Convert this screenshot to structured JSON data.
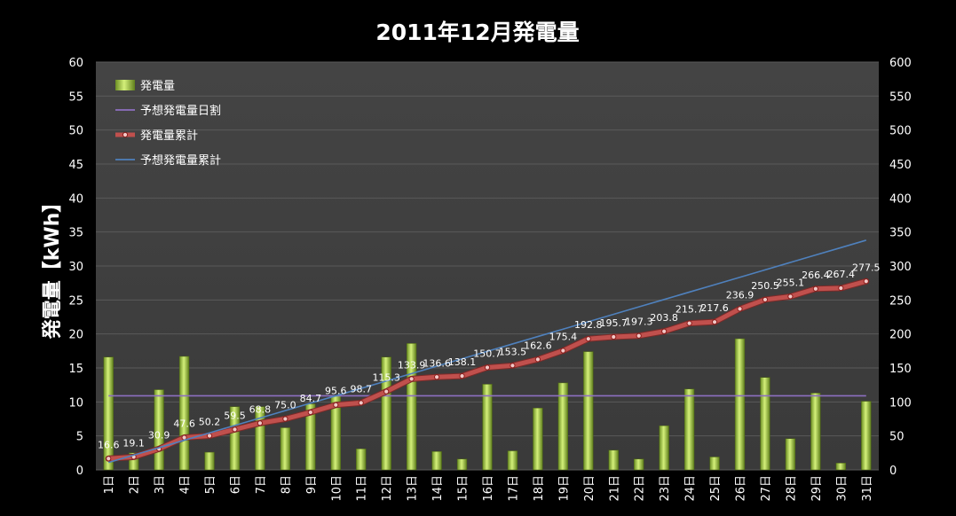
{
  "chart_data": {
    "type": "bar",
    "title": "2011年12月発電量",
    "ylabel": "発電量【kWh】",
    "xlabel": "",
    "ylim": [
      0,
      60
    ],
    "y2lim": [
      0,
      600
    ],
    "grid": true,
    "legend_position": "top-left",
    "categories": [
      "1日",
      "2日",
      "3日",
      "4日",
      "5日",
      "6日",
      "7日",
      "8日",
      "9日",
      "10日",
      "11日",
      "12日",
      "13日",
      "14日",
      "15日",
      "16日",
      "17日",
      "18日",
      "19日",
      "20日",
      "21日",
      "22日",
      "23日",
      "24日",
      "25日",
      "26日",
      "27日",
      "28日",
      "29日",
      "30日",
      "31日"
    ],
    "y_ticks": [
      "0",
      "5",
      "10",
      "15",
      "20",
      "25",
      "30",
      "35",
      "40",
      "45",
      "50",
      "55",
      "60"
    ],
    "y2_ticks": [
      "0",
      "50",
      "100",
      "150",
      "200",
      "250",
      "300",
      "350",
      "400",
      "450",
      "500",
      "550",
      "600"
    ],
    "series": [
      {
        "name": "発電量",
        "type": "bar",
        "axis": "left",
        "color": "#9acd32",
        "values": [
          16.6,
          2.5,
          11.8,
          16.7,
          2.6,
          9.3,
          9.3,
          6.2,
          9.7,
          10.9,
          3.1,
          16.6,
          18.6,
          2.7,
          1.6,
          12.6,
          2.8,
          9.1,
          12.8,
          17.4,
          2.9,
          1.6,
          6.5,
          11.9,
          1.9,
          19.3,
          13.6,
          4.6,
          11.3,
          1.0,
          10.1
        ]
      },
      {
        "name": "予想発電量日割",
        "type": "line",
        "axis": "left",
        "color": "#8e6fc1",
        "values": [
          10.9,
          10.9,
          10.9,
          10.9,
          10.9,
          10.9,
          10.9,
          10.9,
          10.9,
          10.9,
          10.9,
          10.9,
          10.9,
          10.9,
          10.9,
          10.9,
          10.9,
          10.9,
          10.9,
          10.9,
          10.9,
          10.9,
          10.9,
          10.9,
          10.9,
          10.9,
          10.9,
          10.9,
          10.9,
          10.9,
          10.9
        ]
      },
      {
        "name": "発電量累計",
        "type": "line",
        "axis": "right",
        "color": "#c0504d",
        "values": [
          16.6,
          19.1,
          30.9,
          47.6,
          50.2,
          59.5,
          68.8,
          75.0,
          84.7,
          95.6,
          98.7,
          115.3,
          133.9,
          136.6,
          138.1,
          150.7,
          153.5,
          162.6,
          175.4,
          192.8,
          195.7,
          197.3,
          203.8,
          215.7,
          217.6,
          236.9,
          250.5,
          255.1,
          266.4,
          267.4,
          277.5
        ],
        "labels": [
          "16.6",
          "19.1",
          "30.9",
          "47.6",
          "50.2",
          "59.5",
          "68.8",
          "75.0",
          "84.7",
          "95.6",
          "98.7",
          "115.3",
          "133.9",
          "136.6",
          "138.1",
          "150.7",
          "153.5",
          "162.6",
          "175.4",
          "192.8",
          "195.7",
          "197.3",
          "203.8",
          "215.7",
          "217.6",
          "236.9",
          "250.5",
          "255.1",
          "266.4",
          "267.4",
          "277.5"
        ]
      },
      {
        "name": "予想発電量累計",
        "type": "line",
        "axis": "right",
        "color": "#4f81bd",
        "values": [
          10.9,
          21.8,
          32.7,
          43.6,
          54.5,
          65.4,
          76.3,
          87.2,
          98.1,
          109.0,
          119.9,
          130.8,
          141.7,
          152.6,
          163.5,
          174.4,
          185.3,
          196.2,
          207.1,
          218.0,
          228.9,
          239.8,
          250.7,
          261.6,
          272.5,
          283.4,
          294.3,
          305.2,
          316.1,
          327.0,
          337.9
        ]
      }
    ]
  }
}
